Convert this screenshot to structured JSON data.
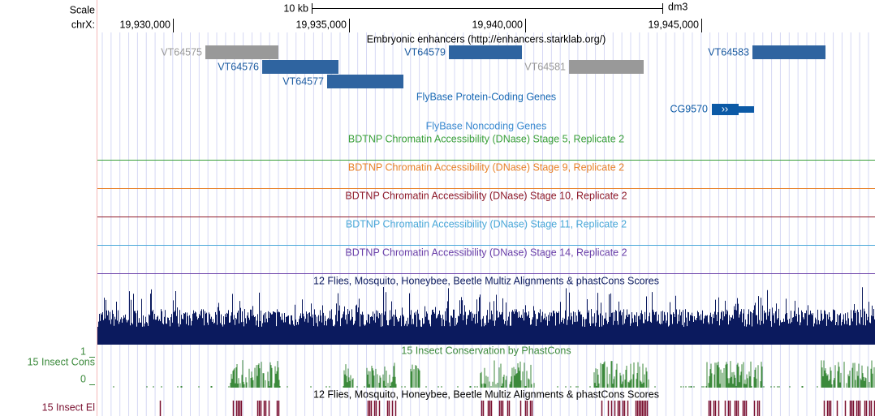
{
  "ruler": {
    "scale_label": "Scale",
    "chrom_label": "chrX:",
    "scale_bar": "10 kb",
    "assembly": "dm3",
    "positions": [
      "19,930,000",
      "19,935,000",
      "19,940,000",
      "19,945,000"
    ]
  },
  "tracks": {
    "enhancers": {
      "title": "Embryonic enhancers (http://enhancers.starklab.org/)",
      "features": [
        "VT64575",
        "VT64576",
        "VT64577",
        "VT64579",
        "VT64581",
        "VT64583"
      ]
    },
    "protein_coding": {
      "title": "FlyBase Protein-Coding Genes",
      "gene": "CG9570"
    },
    "noncoding": {
      "title": "FlyBase Noncoding Genes"
    },
    "dnase": [
      "BDTNP Chromatin Accessibility (DNase) Stage 5, Replicate 2",
      "BDTNP Chromatin Accessibility (DNase) Stage 9, Replicate 2",
      "BDTNP Chromatin Accessibility (DNase) Stage 10, Replicate 2",
      "BDTNP Chromatin Accessibility (DNase) Stage 11, Replicate 2",
      "BDTNP Chromatin Accessibility (DNase) Stage 14, Replicate 2"
    ],
    "multiz": {
      "title": "12 Flies, Mosquito, Honeybee, Beetle Multiz Alignments & phastCons Scores"
    },
    "conservation": {
      "title": "15 Insect Conservation by PhastCons",
      "side_label": "15 Insect Cons",
      "max_label": "1",
      "min_label": "0"
    },
    "elements": {
      "title": "12 Flies, Mosquito, Honeybee, Beetle Multiz Alignments & phastCons Scores",
      "side_label": "15 Insect El"
    }
  }
}
